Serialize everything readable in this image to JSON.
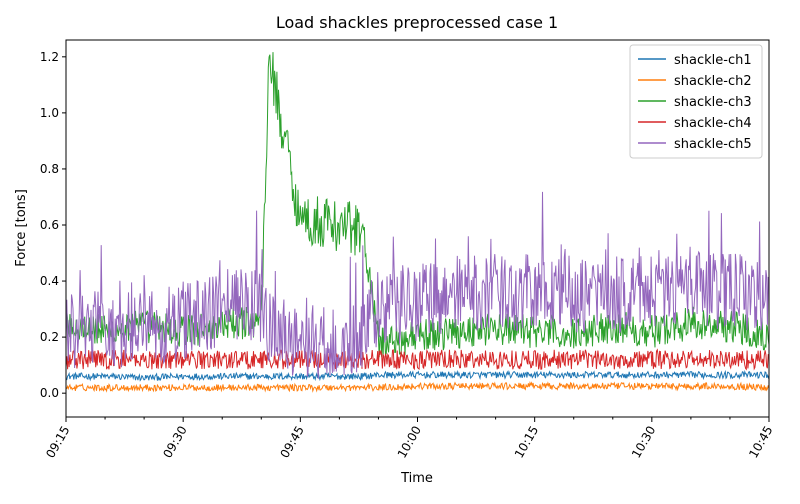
{
  "chart_data": {
    "type": "line",
    "title": "Load shackles preprocessed case 1",
    "xlabel": "Time",
    "ylabel": "Force [tons]",
    "xlim": [
      "09:15",
      "10:45"
    ],
    "ylim": [
      -0.085,
      1.26
    ],
    "xticks": [
      "09:15",
      "09:30",
      "09:45",
      "10:00",
      "10:15",
      "10:30",
      "10:45"
    ],
    "yticks": [
      0.0,
      0.2,
      0.4,
      0.6,
      0.8,
      1.0,
      1.2
    ],
    "ytick_labels": [
      "0.0",
      "0.2",
      "0.4",
      "0.6",
      "0.8",
      "1.0",
      "1.2"
    ],
    "grid": false,
    "legend_position": "top-right",
    "x": [
      "09:15",
      "09:20",
      "09:25",
      "09:30",
      "09:35",
      "09:40",
      "09:41",
      "09:45",
      "09:50",
      "09:53",
      "09:55",
      "10:00",
      "10:05",
      "10:10",
      "10:15",
      "10:20",
      "10:25",
      "10:30",
      "10:35",
      "10:40",
      "10:45"
    ],
    "series": [
      {
        "name": "shackle-ch1",
        "color": "#1f77b4",
        "values": [
          0.06,
          0.06,
          0.055,
          0.06,
          0.06,
          0.06,
          0.06,
          0.06,
          0.06,
          0.06,
          0.065,
          0.065,
          0.065,
          0.065,
          0.065,
          0.065,
          0.065,
          0.065,
          0.065,
          0.065,
          0.065
        ]
      },
      {
        "name": "shackle-ch2",
        "color": "#ff7f0e",
        "values": [
          0.02,
          0.02,
          0.02,
          0.02,
          0.02,
          0.02,
          0.02,
          0.02,
          0.02,
          0.02,
          0.02,
          0.025,
          0.025,
          0.025,
          0.025,
          0.025,
          0.025,
          0.025,
          0.025,
          0.025,
          0.02
        ]
      },
      {
        "name": "shackle-ch3",
        "color": "#2ca02c",
        "values": [
          0.25,
          0.22,
          0.24,
          0.22,
          0.24,
          0.26,
          1.2,
          0.62,
          0.6,
          0.58,
          0.18,
          0.2,
          0.22,
          0.23,
          0.22,
          0.21,
          0.24,
          0.22,
          0.25,
          0.24,
          0.21
        ]
      },
      {
        "name": "shackle-ch4",
        "color": "#d62728",
        "values": [
          0.12,
          0.12,
          0.12,
          0.12,
          0.12,
          0.12,
          0.12,
          0.12,
          0.12,
          0.12,
          0.12,
          0.12,
          0.12,
          0.12,
          0.12,
          0.12,
          0.12,
          0.12,
          0.12,
          0.12,
          0.12
        ]
      },
      {
        "name": "shackle-ch5",
        "color": "#9467bd",
        "values": [
          0.22,
          0.24,
          0.22,
          0.26,
          0.3,
          0.32,
          0.25,
          0.18,
          0.16,
          0.2,
          0.3,
          0.32,
          0.35,
          0.36,
          0.36,
          0.35,
          0.35,
          0.37,
          0.38,
          0.36,
          0.35
        ]
      }
    ]
  }
}
